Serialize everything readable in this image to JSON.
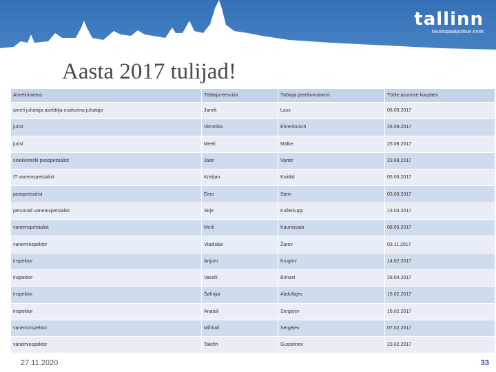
{
  "header": {
    "logo_text": "tallinn",
    "logo_subtitle": "Munitsipaalpolitsei Amet"
  },
  "title": "Aasta 2017 tulijad!",
  "table": {
    "columns": [
      "Ametinimetus",
      "Töötaja eesnimi",
      "Töötaja perekonnanimi",
      "Tööle asumise kuupäev"
    ],
    "rows": [
      [
        "ameti juhataja asetäitja osakonna juhataja",
        "Janek",
        "Lass",
        "06.03.2017"
      ],
      [
        "jurist",
        "Veronika",
        "Ehrenbusch",
        "28.09.2017"
      ],
      [
        "jurist",
        "Meeli",
        "Malke",
        "25.08.2017"
      ],
      [
        "sisekontrolli peaspetsialist",
        "Jaan",
        "Varter",
        "23.08.2017"
      ],
      [
        "IT vanemspetsialist",
        "Kristjan",
        "Kiviäld",
        "05.06.2017"
      ],
      [
        "peaspetsialist",
        "Eero",
        "Stein",
        "03.09.2017"
      ],
      [
        "personali vanemspetsialist",
        "Sirje",
        "Kullerkupp",
        "13.03.2017"
      ],
      [
        "vanemspetsialist",
        "Merli",
        "Kaunissaar",
        "08.05.2017"
      ],
      [
        "vaneminspektor",
        "Vladislav",
        "Žarov",
        "03.11.2017"
      ],
      [
        "inspektor",
        "Artjom",
        "Kruglov",
        "14.02.2017"
      ],
      [
        "inspektor",
        "Vassili",
        "Brinzei",
        "28.04.2017"
      ],
      [
        "inspektor",
        "Šahrijar",
        "Abdullajev",
        "16.02.2017"
      ],
      [
        "inspektor",
        "Anatoli",
        "Sergejev",
        "16.02.2017"
      ],
      [
        "vaneminspektor",
        "Mihhail",
        "Sergejev",
        "07.02.2017"
      ],
      [
        "vaneminspektor",
        "Talehh",
        "Gusseinov",
        "23.02.2017"
      ]
    ]
  },
  "footer": {
    "date": "27.11.2020",
    "page": "33"
  }
}
